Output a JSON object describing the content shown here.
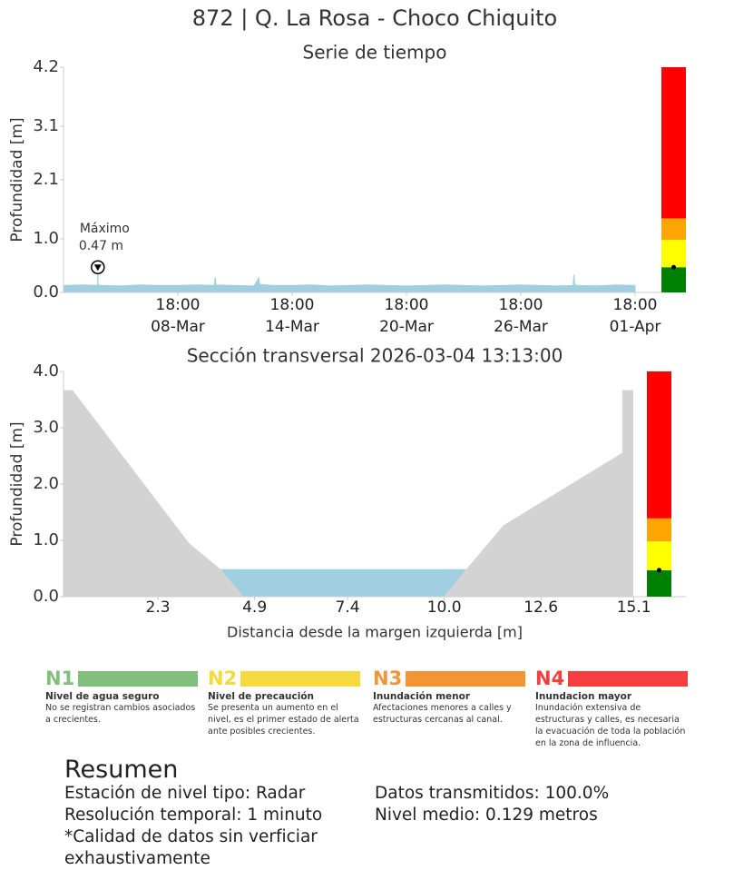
{
  "title": "872 | Q. La Rosa - Choco Chiquito",
  "chart_data": [
    {
      "type": "area",
      "title": "Serie de tiempo",
      "ylabel": "Profundidad [m]",
      "xlim": [
        "02-Mar 18:00",
        "01-Apr 18:00"
      ],
      "xticks": [
        {
          "value": "08-Mar 18:00",
          "label": "18:00\n08-Mar"
        },
        {
          "value": "14-Mar 18:00",
          "label": "18:00\n14-Mar"
        },
        {
          "value": "20-Mar 18:00",
          "label": "18:00\n20-Mar"
        },
        {
          "value": "26-Mar 18:00",
          "label": "18:00\n26-Mar"
        },
        {
          "value": "01-Apr 18:00",
          "label": "18:00\n01-Apr"
        }
      ],
      "ylim": [
        0,
        4.2
      ],
      "yticks": [
        {
          "value": 0,
          "label": "0.0"
        },
        {
          "value": 1,
          "label": "1.0"
        },
        2.1,
        3.1,
        4.2
      ],
      "series": [
        {
          "color": "#9fcfe0",
          "x": [
            "02-Mar 18:00",
            "03-Mar 18:00",
            "04-Mar 13:00",
            "04-Mar 13:13",
            "04-Mar 13:30",
            "04-Mar 18:00",
            "05-Mar 18:00",
            "06-Mar 18:00",
            "07-Mar 18:00",
            "08-Mar 18:00",
            "09-Mar 18:00",
            "10-Mar 16:00",
            "10-Mar 17:00",
            "10-Mar 18:00",
            "11-Mar 18:00",
            "12-Mar 18:00",
            "13-Mar 00:00",
            "13-Mar 01:00",
            "13-Mar 18:00",
            "14-Mar 18:00",
            "15-Mar 18:00",
            "16-Mar 18:00",
            "17-Mar 18:00",
            "18-Mar 18:00",
            "19-Mar 18:00",
            "20-Mar 18:00",
            "21-Mar 18:00",
            "22-Mar 18:00",
            "23-Mar 18:00",
            "24-Mar 18:00",
            "25-Mar 18:00",
            "26-Mar 18:00",
            "27-Mar 18:00",
            "28-Mar 18:00",
            "29-Mar 12:00",
            "29-Mar 13:00",
            "29-Mar 14:00",
            "29-Mar 18:00",
            "30-Mar 18:00",
            "31-Mar 18:00",
            "01-Apr 18:00"
          ],
          "values": [
            0.13,
            0.14,
            0.13,
            0.47,
            0.14,
            0.13,
            0.12,
            0.14,
            0.13,
            0.13,
            0.14,
            0.13,
            0.28,
            0.14,
            0.13,
            0.12,
            0.27,
            0.15,
            0.13,
            0.13,
            0.14,
            0.12,
            0.13,
            0.14,
            0.13,
            0.12,
            0.13,
            0.14,
            0.13,
            0.12,
            0.13,
            0.14,
            0.13,
            0.12,
            0.13,
            0.33,
            0.14,
            0.13,
            0.12,
            0.14,
            0.13
          ]
        }
      ],
      "annotation": {
        "text": "Máximo",
        "x": "04-Mar 13:13",
        "value": 0.47,
        "value_label": "0.47 m"
      },
      "level_bands": {
        "bounds": [
          0,
          0.47,
          0.98,
          1.38,
          4.2
        ],
        "colors": [
          "#008000",
          "#ffff00",
          "#ffa500",
          "#ff0000"
        ],
        "current": 0.47
      }
    },
    {
      "type": "area",
      "title": "Sección transversal 2026-03-04 13:13:00",
      "xlabel": "Distancia desde la margen izquierda [m]",
      "ylabel": "Profundidad [m]",
      "xlim": [
        -0.24,
        16.5
      ],
      "xticks": [
        2.3,
        4.9,
        7.4,
        {
          "value": 10,
          "label": "10.0"
        },
        12.6,
        15.1
      ],
      "ylim": [
        0,
        4
      ],
      "yticks": [
        {
          "value": 0,
          "label": "0.0"
        },
        {
          "value": 1,
          "label": "1.0"
        },
        {
          "value": 2,
          "label": "2.0"
        },
        {
          "value": 3,
          "label": "3.0"
        },
        {
          "value": 4,
          "label": "4.0"
        }
      ],
      "series": [
        {
          "color": "#9fcfe0",
          "x": [
            3.98,
            10.6
          ],
          "values": [
            0.48,
            0.48
          ]
        },
        {
          "color": "#d3d3d3",
          "x": [
            -0.24,
            0.0,
            3.12,
            3.98,
            4.59,
            10.0,
            10.6,
            11.6,
            14.8,
            14.8,
            15.07,
            15.07
          ],
          "values": [
            3.66,
            3.66,
            0.95,
            0.48,
            0,
            0,
            0.48,
            1.26,
            2.55,
            3.66,
            3.66,
            0
          ]
        }
      ],
      "level_bands": {
        "bounds": [
          0,
          0.47,
          0.98,
          1.39,
          4.0
        ],
        "colors": [
          "#008000",
          "#ffff00",
          "#ffa500",
          "#ff0000"
        ],
        "current": 0.47
      }
    }
  ],
  "levels": [
    {
      "code": "N1",
      "color": "#80c07c",
      "name": "Nivel de agua seguro",
      "description": "No se registran cambios asociados a crecientes."
    },
    {
      "code": "N2",
      "color": "#f5da3f",
      "name": "Nivel de precaución",
      "description": "Se presenta un aumento en el nivel, es el primer estado de alerta ante posibles crecientes."
    },
    {
      "code": "N3",
      "color": "#f39435",
      "name": "Inundación menor",
      "description": "Afectaciones menores a calles y estructuras cercanas al canal."
    },
    {
      "code": "N4",
      "color": "#f63e3e",
      "name": "Inundacion mayor",
      "description": "Inundación extensiva de estructuras y calles, es necesaria la evacuación de toda la población en la zona de influencia."
    }
  ],
  "summary": {
    "title": "Resumen",
    "left": [
      "Estación de nivel tipo: Radar",
      "Resolución temporal: 1 minuto",
      "*Calidad de datos sin verficiar exhaustivamente"
    ],
    "right": [
      "Datos transmitidos: 100.0%",
      "Nivel medio: 0.129 metros"
    ]
  }
}
